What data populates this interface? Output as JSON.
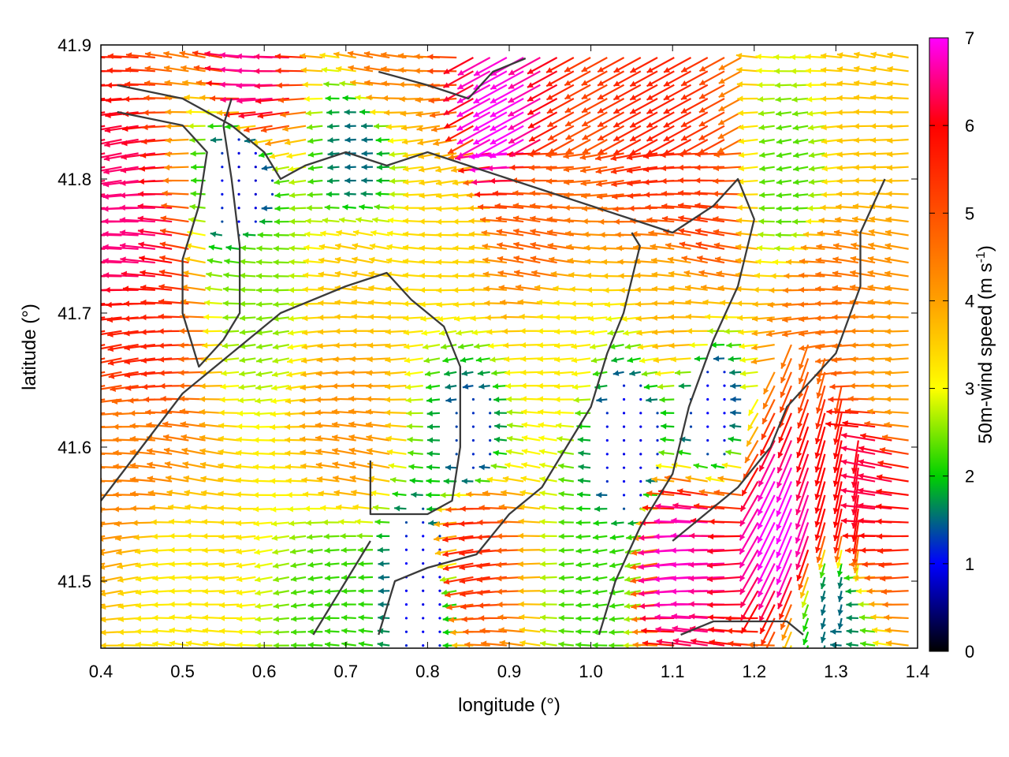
{
  "chart_data": {
    "type": "vector-field",
    "title": "",
    "xlabel": "longitude (°)",
    "ylabel": "latitude (°)",
    "colorbar_label_main": "50m-wind speed (m s",
    "colorbar_label_sup": "-1",
    "colorbar_label_end": ")",
    "xlim": [
      0.4,
      1.4
    ],
    "ylim": [
      41.45,
      41.9
    ],
    "x_ticks": [
      "0.4",
      "0.5",
      "0.6",
      "0.7",
      "0.8",
      "0.9",
      "1.0",
      "1.1",
      "1.2",
      "1.3",
      "1.4"
    ],
    "y_ticks": [
      "41.5",
      "41.6",
      "41.7",
      "41.8",
      "41.9"
    ],
    "y_tick_values": [
      41.5,
      41.6,
      41.7,
      41.8,
      41.9
    ],
    "colorbar_range": [
      0,
      7
    ],
    "colorbar_ticks": [
      "0",
      "1",
      "2",
      "3",
      "4",
      "5",
      "6",
      "7"
    ],
    "colormap": [
      "#000000",
      "#0000ff",
      "#00d000",
      "#ffff00",
      "#ffa000",
      "#ff5000",
      "#ff0000",
      "#ff00ff"
    ],
    "grid": false,
    "contour_color": "#3a3a3a",
    "wind_regions": [
      {
        "lon": 0.45,
        "lat": 41.76,
        "speed": 6.5
      },
      {
        "lon": 0.47,
        "lat": 41.68,
        "speed": 5.6
      },
      {
        "lon": 0.46,
        "lat": 41.6,
        "speed": 4.4
      },
      {
        "lon": 0.5,
        "lat": 41.5,
        "speed": 3.2
      },
      {
        "lon": 0.6,
        "lat": 41.88,
        "speed": 6.6
      },
      {
        "lon": 0.58,
        "lat": 41.8,
        "speed": 0.8
      },
      {
        "lon": 0.6,
        "lat": 41.72,
        "speed": 2.5
      },
      {
        "lon": 0.72,
        "lat": 41.82,
        "speed": 1.5
      },
      {
        "lon": 0.72,
        "lat": 41.72,
        "speed": 3.6
      },
      {
        "lon": 0.72,
        "lat": 41.62,
        "speed": 4.2
      },
      {
        "lon": 0.7,
        "lat": 41.48,
        "speed": 2.2
      },
      {
        "lon": 0.8,
        "lat": 41.5,
        "speed": 0.9
      },
      {
        "lon": 0.87,
        "lat": 41.53,
        "speed": 5.6
      },
      {
        "lon": 0.86,
        "lat": 41.6,
        "speed": 1.2
      },
      {
        "lon": 0.85,
        "lat": 41.77,
        "speed": 3.4
      },
      {
        "lon": 0.9,
        "lat": 41.84,
        "speed": 7.0
      },
      {
        "lon": 0.95,
        "lat": 41.76,
        "speed": 4.8
      },
      {
        "lon": 0.97,
        "lat": 41.68,
        "speed": 3.2
      },
      {
        "lon": 1.05,
        "lat": 41.6,
        "speed": 0.9
      },
      {
        "lon": 1.02,
        "lat": 41.5,
        "speed": 2.2
      },
      {
        "lon": 1.1,
        "lat": 41.84,
        "speed": 5.6
      },
      {
        "lon": 1.15,
        "lat": 41.78,
        "speed": 5.3
      },
      {
        "lon": 1.12,
        "lat": 41.7,
        "speed": 3.8
      },
      {
        "lon": 1.15,
        "lat": 41.63,
        "speed": 1.0
      },
      {
        "lon": 1.13,
        "lat": 41.52,
        "speed": 6.8
      },
      {
        "lon": 1.24,
        "lat": 41.55,
        "speed": 7.0
      },
      {
        "lon": 1.3,
        "lat": 41.58,
        "speed": 6.0
      },
      {
        "lon": 1.35,
        "lat": 41.58,
        "speed": 6.3
      },
      {
        "lon": 1.3,
        "lat": 41.48,
        "speed": 1.5
      },
      {
        "lon": 1.3,
        "lat": 41.7,
        "speed": 4.6
      },
      {
        "lon": 1.35,
        "lat": 41.85,
        "speed": 3.6
      },
      {
        "lon": 1.25,
        "lat": 41.8,
        "speed": 2.3
      },
      {
        "lon": 0.75,
        "lat": 41.9,
        "speed": 4.5
      },
      {
        "lon": 1.38,
        "lat": 41.65,
        "speed": 4.0
      }
    ],
    "contours": [
      [
        [
          0.42,
          41.87
        ],
        [
          0.5,
          41.86
        ],
        [
          0.56,
          41.84
        ],
        [
          0.58,
          41.83
        ],
        [
          0.6,
          41.82
        ],
        [
          0.62,
          41.8
        ],
        [
          0.65,
          41.81
        ],
        [
          0.7,
          41.82
        ],
        [
          0.75,
          41.81
        ],
        [
          0.8,
          41.82
        ],
        [
          0.85,
          41.81
        ],
        [
          0.9,
          41.8
        ],
        [
          0.95,
          41.79
        ]
      ],
      [
        [
          0.42,
          41.85
        ],
        [
          0.5,
          41.84
        ],
        [
          0.53,
          41.82
        ],
        [
          0.52,
          41.78
        ],
        [
          0.5,
          41.74
        ],
        [
          0.5,
          41.7
        ],
        [
          0.52,
          41.66
        ],
        [
          0.55,
          41.68
        ],
        [
          0.57,
          41.7
        ],
        [
          0.57,
          41.75
        ],
        [
          0.56,
          41.8
        ],
        [
          0.55,
          41.84
        ],
        [
          0.56,
          41.86
        ]
      ],
      [
        [
          0.4,
          41.56
        ],
        [
          0.45,
          41.6
        ],
        [
          0.5,
          41.64
        ],
        [
          0.56,
          41.67
        ],
        [
          0.62,
          41.7
        ],
        [
          0.7,
          41.72
        ],
        [
          0.75,
          41.73
        ],
        [
          0.78,
          41.71
        ],
        [
          0.82,
          41.69
        ],
        [
          0.84,
          41.66
        ],
        [
          0.84,
          41.6
        ],
        [
          0.83,
          41.56
        ],
        [
          0.8,
          41.55
        ],
        [
          0.76,
          41.55
        ],
        [
          0.73,
          41.55
        ],
        [
          0.73,
          41.59
        ]
      ],
      [
        [
          0.73,
          41.53
        ],
        [
          0.7,
          41.5
        ],
        [
          0.68,
          41.48
        ],
        [
          0.66,
          41.46
        ]
      ],
      [
        [
          0.74,
          41.46
        ],
        [
          0.76,
          41.5
        ],
        [
          0.8,
          41.51
        ],
        [
          0.86,
          41.52
        ],
        [
          0.9,
          41.55
        ],
        [
          0.94,
          41.57
        ],
        [
          0.97,
          41.6
        ],
        [
          1.0,
          41.63
        ],
        [
          1.02,
          41.67
        ],
        [
          1.04,
          41.7
        ],
        [
          1.06,
          41.75
        ],
        [
          1.05,
          41.76
        ]
      ],
      [
        [
          0.95,
          41.79
        ],
        [
          1.0,
          41.78
        ],
        [
          1.05,
          41.77
        ],
        [
          1.1,
          41.76
        ],
        [
          1.15,
          41.78
        ],
        [
          1.18,
          41.8
        ],
        [
          1.2,
          41.77
        ],
        [
          1.18,
          41.72
        ],
        [
          1.15,
          41.68
        ],
        [
          1.12,
          41.63
        ],
        [
          1.1,
          41.58
        ],
        [
          1.06,
          41.54
        ],
        [
          1.03,
          41.5
        ],
        [
          1.01,
          41.46
        ]
      ],
      [
        [
          1.1,
          41.53
        ],
        [
          1.14,
          41.55
        ],
        [
          1.18,
          41.57
        ],
        [
          1.22,
          41.6
        ],
        [
          1.24,
          41.63
        ],
        [
          1.27,
          41.65
        ],
        [
          1.3,
          41.67
        ],
        [
          1.33,
          41.72
        ],
        [
          1.33,
          41.76
        ],
        [
          1.36,
          41.8
        ]
      ],
      [
        [
          1.11,
          41.46
        ],
        [
          1.15,
          41.47
        ],
        [
          1.2,
          41.47
        ],
        [
          1.24,
          41.47
        ],
        [
          1.26,
          41.46
        ]
      ],
      [
        [
          0.74,
          41.88
        ],
        [
          0.8,
          41.87
        ],
        [
          0.85,
          41.86
        ],
        [
          0.88,
          41.88
        ],
        [
          0.92,
          41.89
        ]
      ]
    ]
  }
}
